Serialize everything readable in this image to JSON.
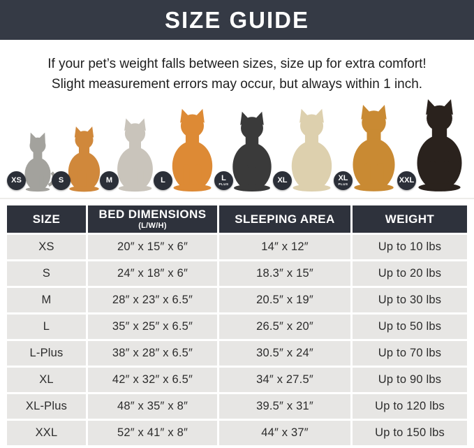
{
  "header": {
    "title": "SIZE GUIDE"
  },
  "intro": {
    "line1": "If your pet’s weight falls between sizes, size up for extra comfort!",
    "line2": "Slight measurement errors may occur, but always within 1 inch."
  },
  "colors": {
    "titlebar_bg": "#353a45",
    "table_header_bg": "#2e323c",
    "table_cell_bg": "#e7e6e4",
    "badge_bg": "#2b2f38",
    "divider": "#edece9"
  },
  "pets": [
    {
      "badge": "XS",
      "badge_sub": "",
      "animal": "cat",
      "color": "#a3a29d",
      "height": 90
    },
    {
      "badge": "S",
      "badge_sub": "",
      "animal": "dog",
      "color": "#d0883b",
      "height": 96
    },
    {
      "badge": "M",
      "badge_sub": "",
      "animal": "dog",
      "color": "#c9c4bb",
      "height": 108
    },
    {
      "badge": "L",
      "badge_sub": "",
      "animal": "dog",
      "color": "#dd8a35",
      "height": 122
    },
    {
      "badge": "L",
      "badge_sub": "PLUS",
      "animal": "dog",
      "color": "#3a3a3a",
      "height": 118
    },
    {
      "badge": "XL",
      "badge_sub": "",
      "animal": "dog",
      "color": "#ddd0ae",
      "height": 122
    },
    {
      "badge": "XL",
      "badge_sub": "PLUS",
      "animal": "dog",
      "color": "#c98a33",
      "height": 128
    },
    {
      "badge": "XXL",
      "badge_sub": "",
      "animal": "dog",
      "color": "#2a221d",
      "height": 136
    }
  ],
  "table": {
    "columns": [
      {
        "label": "SIZE",
        "sub": ""
      },
      {
        "label": "BED DIMENSIONS",
        "sub": "(L/W/H)"
      },
      {
        "label": "SLEEPING AREA",
        "sub": ""
      },
      {
        "label": "WEIGHT",
        "sub": ""
      }
    ],
    "rows": [
      [
        "XS",
        "20″ x 15″ x 6″",
        "14″ x 12″",
        "Up to 10 lbs"
      ],
      [
        "S",
        "24″ x 18″ x 6″",
        "18.3″ x 15″",
        "Up to 20 lbs"
      ],
      [
        "M",
        "28″ x 23″ x 6.5″",
        "20.5″ x 19″",
        "Up to 30 lbs"
      ],
      [
        "L",
        "35″ x 25″ x 6.5″",
        "26.5″ x 20″",
        "Up to 50 lbs"
      ],
      [
        "L-Plus",
        "38″ x 28″ x 6.5″",
        "30.5″ x 24″",
        "Up to 70 lbs"
      ],
      [
        "XL",
        "42″ x 32″ x 6.5″",
        "34″ x 27.5″",
        "Up to 90 lbs"
      ],
      [
        "XL-Plus",
        "48″ x 35″ x 8″",
        "39.5″ x 31″",
        "Up to 120 lbs"
      ],
      [
        "XXL",
        "52″ x 41″ x 8″",
        "44″ x 37″",
        "Up to 150 lbs"
      ]
    ]
  }
}
